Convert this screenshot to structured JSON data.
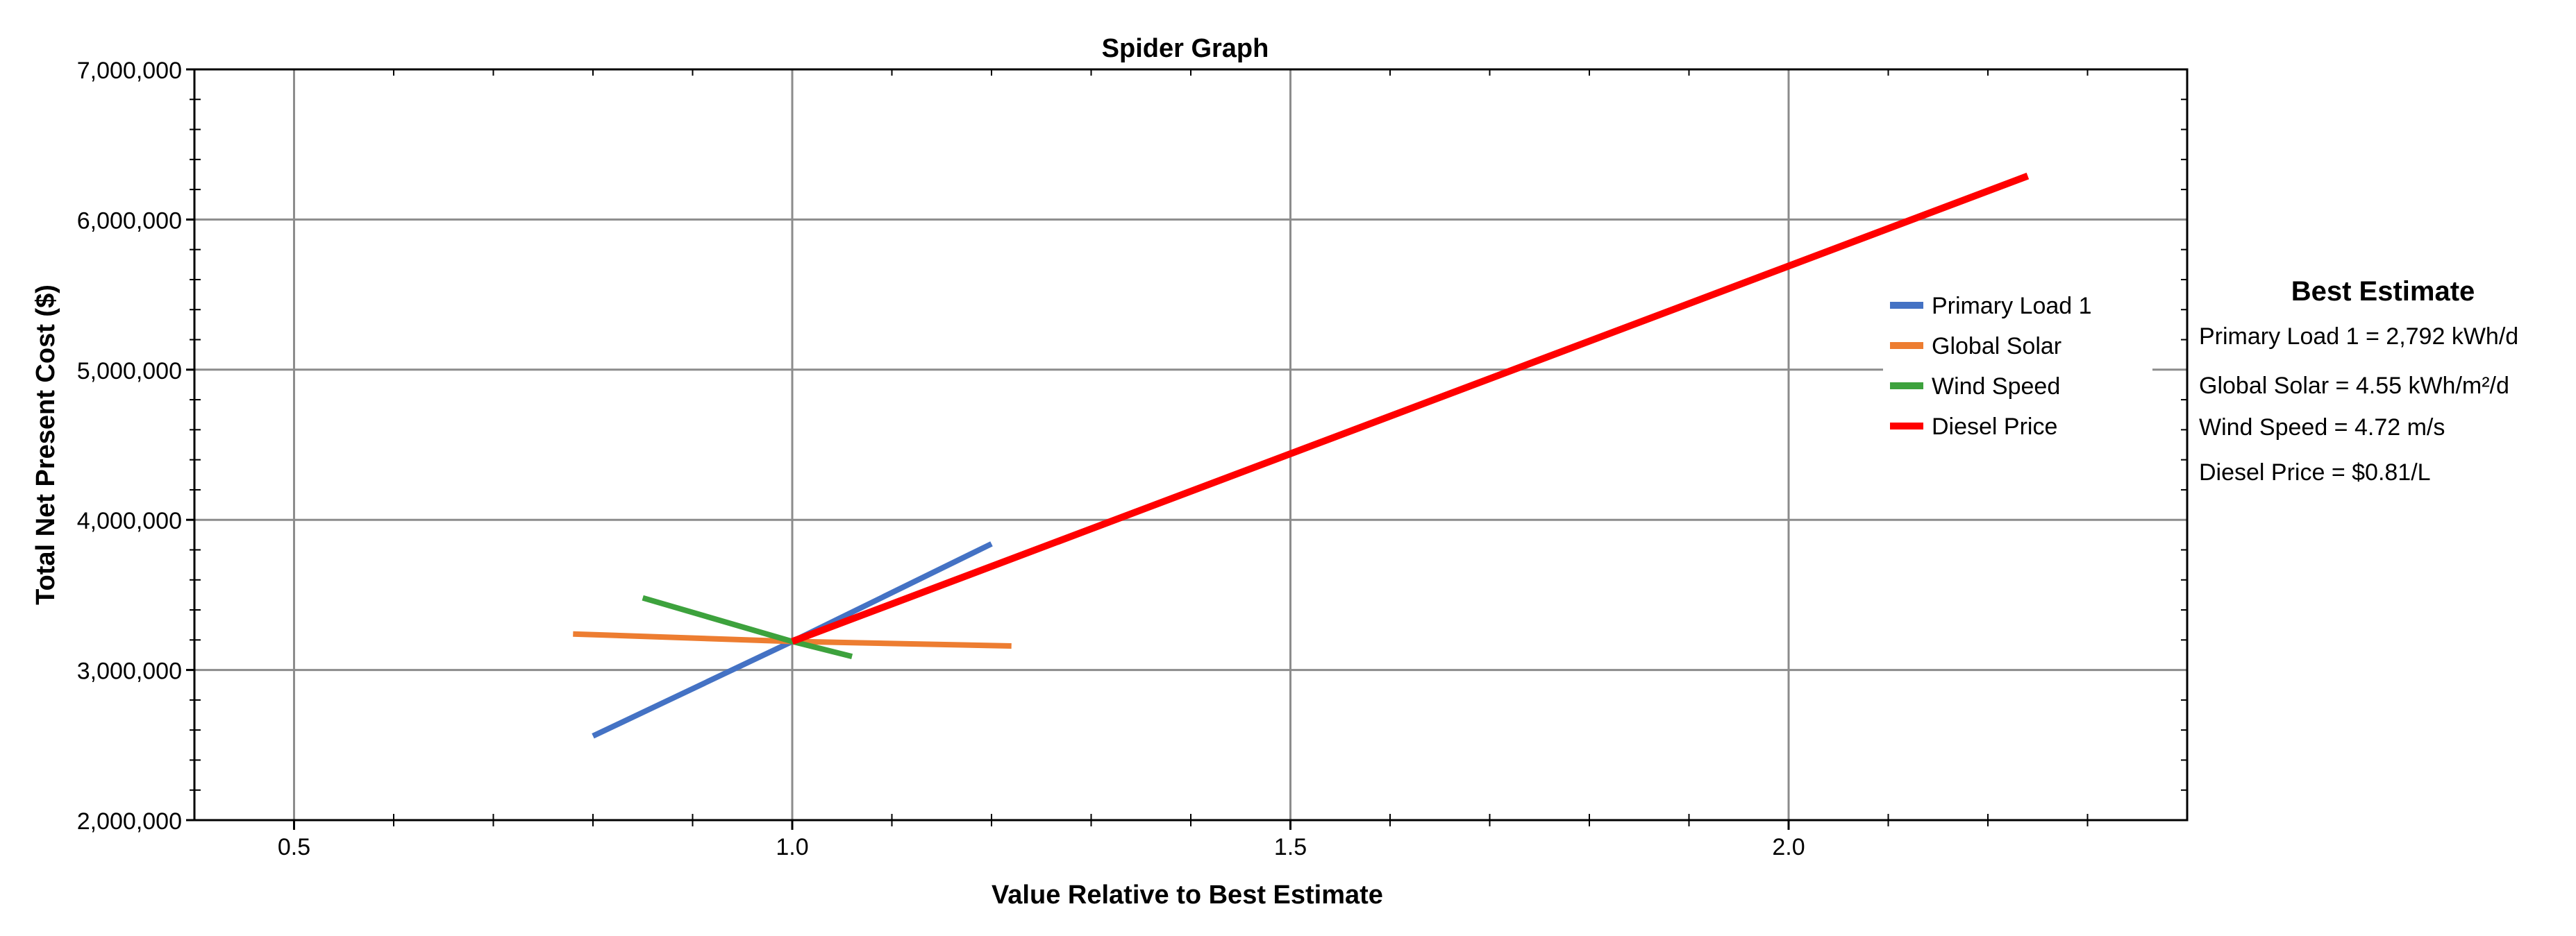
{
  "chart_data": {
    "type": "line",
    "title": "Spider Graph",
    "xlabel": "Value Relative to Best Estimate",
    "ylabel": "Total Net Present Cost ($)",
    "xlim": [
      0.4,
      2.4
    ],
    "ylim": [
      2000000,
      7000000
    ],
    "x_ticks": [
      0.5,
      1.0,
      1.5,
      2.0
    ],
    "x_tick_labels": [
      "0.5",
      "1.0",
      "1.5",
      "2.0"
    ],
    "y_ticks": [
      2000000,
      3000000,
      4000000,
      5000000,
      6000000,
      7000000
    ],
    "y_tick_labels": [
      "2,000,000",
      "3,000,000",
      "4,000,000",
      "5,000,000",
      "6,000,000",
      "7,000,000"
    ],
    "grid": true,
    "legend_position": "right",
    "series": [
      {
        "name": "Primary Load 1",
        "color": "#4472C4",
        "points": [
          [
            0.8,
            2560000
          ],
          [
            1.0,
            3190000
          ],
          [
            1.2,
            3840000
          ]
        ]
      },
      {
        "name": "Global Solar",
        "color": "#ED7D31",
        "points": [
          [
            0.78,
            3240000
          ],
          [
            1.0,
            3190000
          ],
          [
            1.22,
            3160000
          ]
        ]
      },
      {
        "name": "Wind Speed",
        "color": "#3DA23D",
        "points": [
          [
            0.85,
            3480000
          ],
          [
            1.0,
            3190000
          ],
          [
            1.06,
            3090000
          ]
        ]
      },
      {
        "name": "Diesel Price",
        "color": "#FF0000",
        "points": [
          [
            1.0,
            3190000
          ],
          [
            2.24,
            6290000
          ]
        ]
      }
    ]
  },
  "best_estimate": {
    "title": "Best Estimate",
    "lines": [
      "Primary Load 1 = 2,792 kWh/d",
      "Global Solar = 4.55 kWh/m²/d",
      "Wind Speed = 4.72 m/s",
      "Diesel Price = $0.81/L"
    ]
  }
}
